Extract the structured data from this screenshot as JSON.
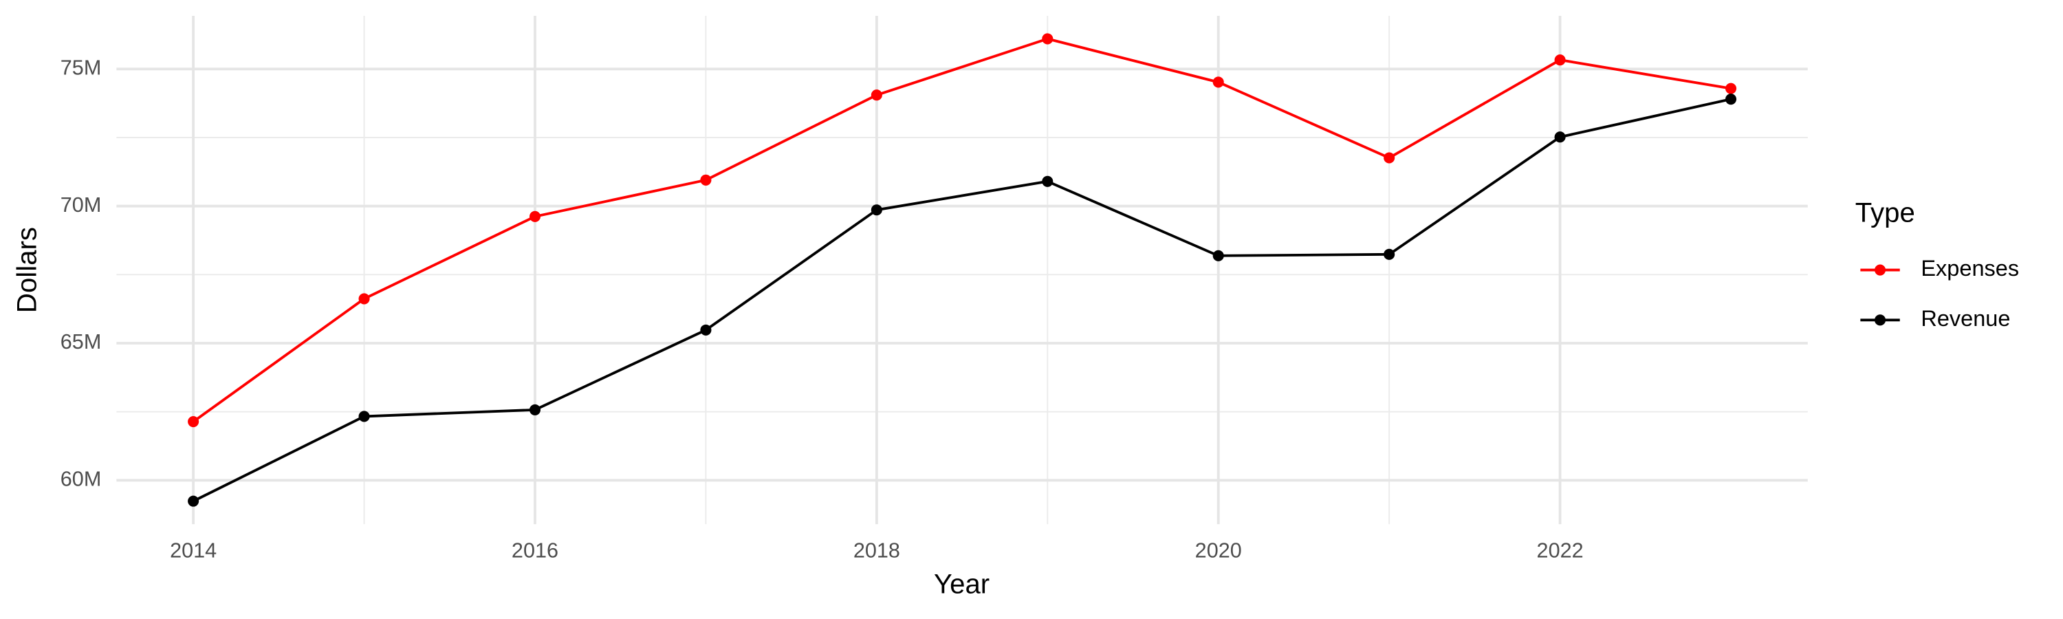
{
  "chart_data": {
    "type": "line",
    "x_label": "Year",
    "y_label": "Dollars",
    "legend_title": "Type",
    "x": [
      2014,
      2015,
      2016,
      2017,
      2018,
      2019,
      2020,
      2021,
      2022,
      2023
    ],
    "series": [
      {
        "name": "Expenses",
        "color": "#ff0000",
        "values": [
          62140000,
          66620000,
          69620000,
          70950000,
          74050000,
          76100000,
          74520000,
          71760000,
          75330000,
          74290000
        ]
      },
      {
        "name": "Revenue",
        "color": "#000000",
        "values": [
          59240000,
          62330000,
          62570000,
          65480000,
          69860000,
          70900000,
          68190000,
          68240000,
          72520000,
          73900000
        ]
      }
    ],
    "xlim": [
      2013.55,
      2023.45
    ],
    "xticks": [
      2014,
      2016,
      2018,
      2020,
      2022
    ],
    "ylim": [
      58400000,
      76940000
    ],
    "yticks": [
      {
        "value": 60000000,
        "label": "60M"
      },
      {
        "value": 65000000,
        "label": "65M"
      },
      {
        "value": 70000000,
        "label": "70M"
      },
      {
        "value": 75000000,
        "label": "75M"
      }
    ],
    "grid": true,
    "legend": "right"
  }
}
